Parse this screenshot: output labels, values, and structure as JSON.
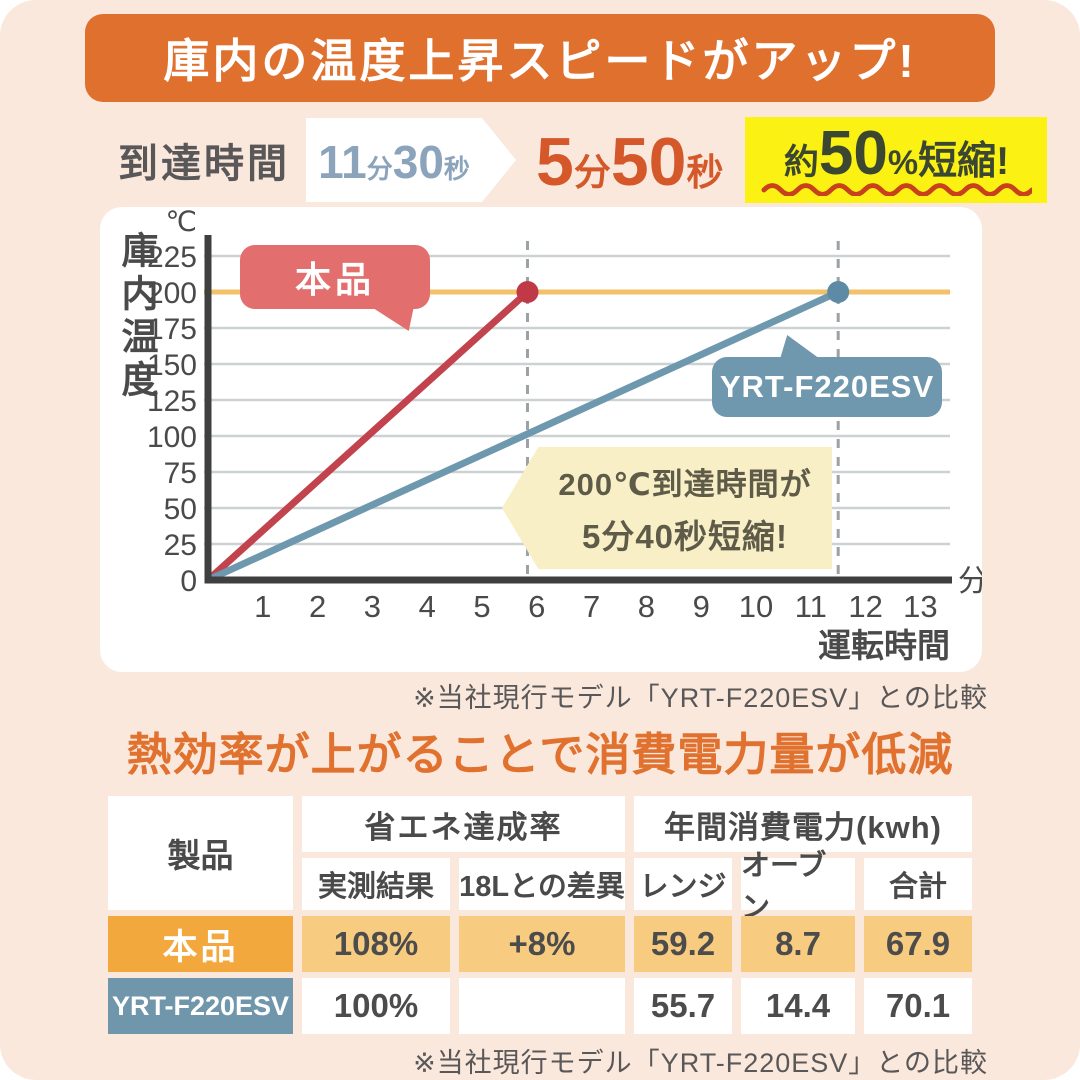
{
  "banner": {
    "text": "庫内の温度上昇スピードがアップ!",
    "bg": "#e0702e"
  },
  "comparison": {
    "label": "到達時間",
    "before": {
      "min": "11",
      "min_unit": "分",
      "sec": "30",
      "sec_unit": "秒"
    },
    "after": {
      "min": "5",
      "min_unit": "分",
      "sec": "50",
      "sec_unit": "秒"
    },
    "badge": {
      "prefix": "約",
      "value": "50",
      "percent": "%",
      "suffix": "短縮!"
    }
  },
  "chart_data": {
    "type": "line",
    "title": "庫内の温度上昇スピードがアップ!",
    "xlabel": "運転時間",
    "x_unit": "分",
    "ylabel": "庫内温度",
    "y_unit": "℃",
    "x_ticks": [
      1,
      2,
      3,
      4,
      5,
      6,
      7,
      8,
      9,
      10,
      11,
      12,
      13
    ],
    "y_ticks": [
      0,
      25,
      50,
      75,
      100,
      125,
      150,
      175,
      200,
      225
    ],
    "xlim": [
      0,
      13.5
    ],
    "ylim": [
      0,
      237
    ],
    "grid": "horizontal-only",
    "reference_line_y": 200,
    "reference_line_color": "#f2c169",
    "series": [
      {
        "name": "本品",
        "color": "#c2434e",
        "dot_color": "#bf3a46",
        "points": [
          [
            0,
            0
          ],
          [
            5.83,
            200
          ]
        ],
        "reach_time": "5分50秒"
      },
      {
        "name": "YRT-F220ESV",
        "color": "#6d98ae",
        "dot_color": "#5d8ba6",
        "points": [
          [
            0,
            0
          ],
          [
            11.5,
            200
          ]
        ],
        "reach_time": "11分30秒"
      }
    ],
    "dashed_marker_x": [
      5.83,
      11.5
    ],
    "annotation": {
      "line1": "200℃到達時間が",
      "line2": "5分40秒短縮!"
    }
  },
  "footnote": "※当社現行モデル「YRT-F220ESV」との比較",
  "section2_title": "熱効率が上がることで消費電力量が低減",
  "table": {
    "col_product": "製品",
    "group1": "省エネ達成率",
    "group2": "年間消費電力(kwh)",
    "sub": [
      "実測結果",
      "18Lとの差異",
      "レンジ",
      "オーブン",
      "合計"
    ],
    "rows": [
      {
        "name": "本品",
        "values": [
          "108%",
          "+8%",
          "59.2",
          "8.7",
          "67.9"
        ]
      },
      {
        "name": "YRT-F220ESV",
        "values": [
          "100%",
          "",
          "55.7",
          "14.4",
          "70.1"
        ]
      }
    ]
  },
  "footnote2": "※当社現行モデル「YRT-F220ESV」との比較"
}
